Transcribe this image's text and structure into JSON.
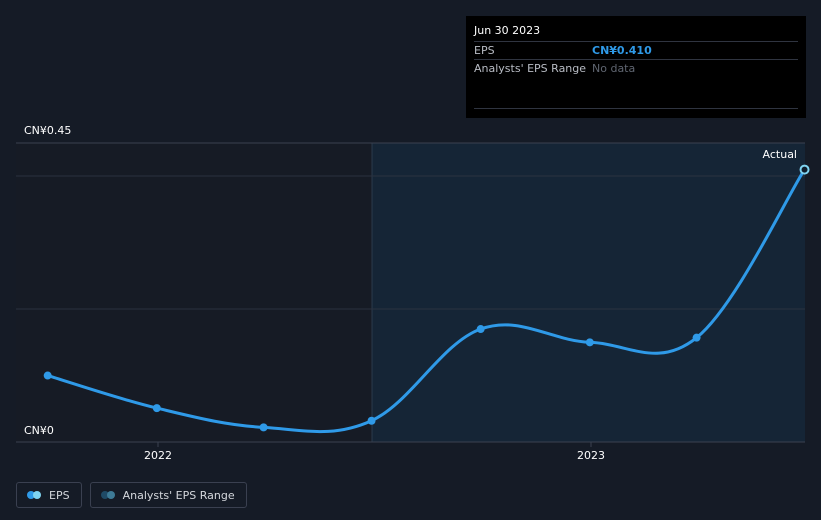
{
  "chart_data": {
    "type": "line",
    "ylim": [
      0,
      0.45
    ],
    "y_tick_labels": {
      "top": "CN¥0.45",
      "bottom": "CN¥0"
    },
    "x_tick_labels": [
      "2022",
      "2023"
    ],
    "actual_label": "Actual",
    "series": [
      {
        "name": "EPS",
        "color": "#2f9ae8",
        "points": [
          {
            "date": "2021-09-30",
            "value": 0.1
          },
          {
            "date": "2021-12-31",
            "value": 0.051
          },
          {
            "date": "2022-03-31",
            "value": 0.022
          },
          {
            "date": "2022-06-30",
            "value": 0.032
          },
          {
            "date": "2022-09-30",
            "value": 0.17
          },
          {
            "date": "2022-12-31",
            "value": 0.15
          },
          {
            "date": "2023-03-31",
            "value": 0.157
          },
          {
            "date": "2023-06-30",
            "value": 0.41
          }
        ]
      }
    ]
  },
  "tooltip": {
    "date": "Jun 30 2023",
    "eps_label": "EPS",
    "eps_value": "CN¥0.410",
    "range_label": "Analysts' EPS Range",
    "range_value": "No data"
  },
  "legend": {
    "eps_label": "EPS",
    "eps_colors": [
      "#2f9ae8",
      "#7fd3f0"
    ],
    "range_label": "Analysts' EPS Range",
    "range_colors": [
      "#1f4a66",
      "#3d7a96"
    ]
  }
}
